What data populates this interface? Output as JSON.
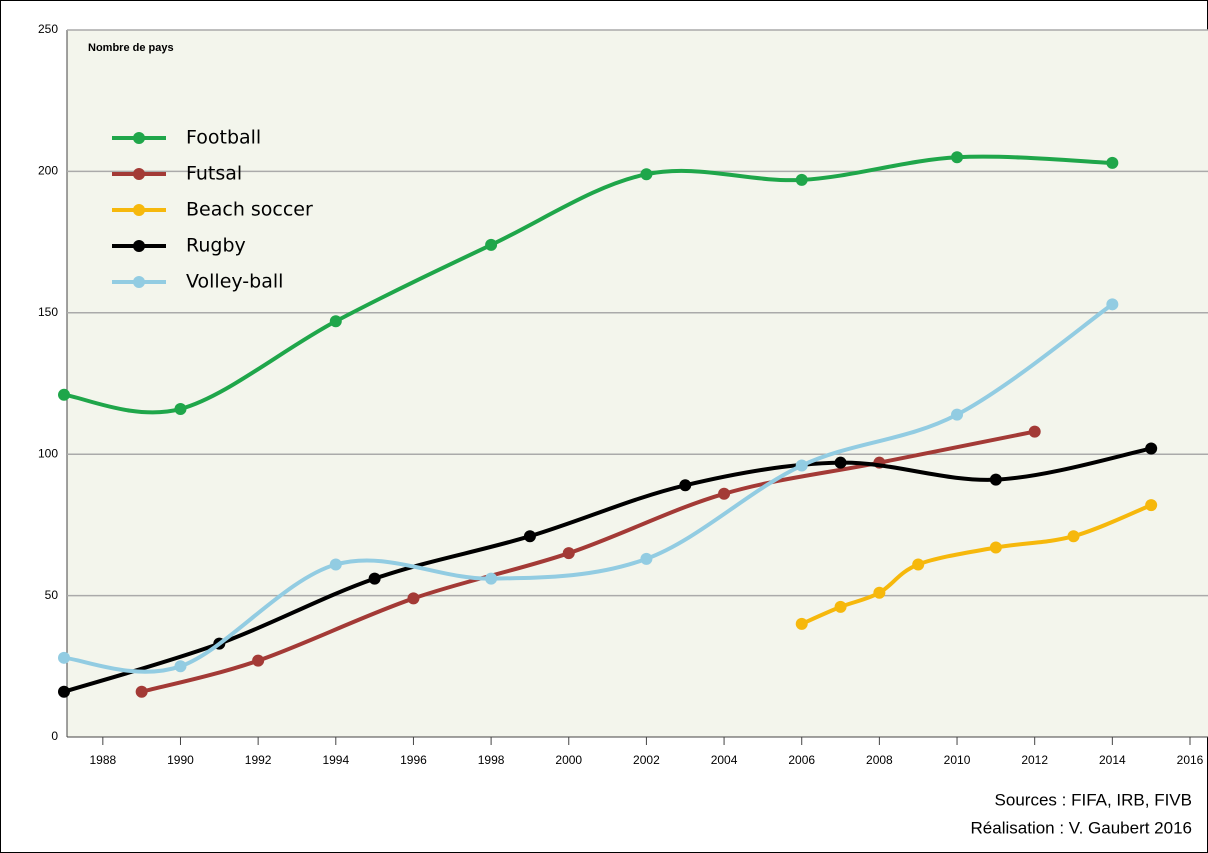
{
  "chart_data": {
    "type": "line",
    "y_label": "Nombre de pays",
    "source": [
      "Sources : FIFA, IRB, FIVB",
      "Réalisation : V. Gaubert 2016"
    ],
    "xlim": [
      1987,
      2016
    ],
    "xticks": [
      1988,
      1990,
      1992,
      1994,
      1996,
      1998,
      2000,
      2002,
      2004,
      2006,
      2008,
      2010,
      2012,
      2014,
      2016
    ],
    "ylim": [
      0,
      250
    ],
    "yticks": [
      0,
      50,
      100,
      150,
      200,
      250
    ],
    "grid": true,
    "legend": "upper left",
    "series": [
      {
        "name": "Football",
        "color": "#1fa64a",
        "x": [
          1987,
          1990,
          1994,
          1998,
          2002,
          2006,
          2010,
          2014
        ],
        "values": [
          121,
          116,
          147,
          174,
          199,
          197,
          205,
          203
        ]
      },
      {
        "name": "Futsal",
        "color": "#a33a36",
        "x": [
          1989,
          1992,
          1996,
          2000,
          2004,
          2008,
          2012
        ],
        "values": [
          16,
          27,
          49,
          65,
          86,
          97,
          108
        ]
      },
      {
        "name": "Beach soccer",
        "color": "#f6b80c",
        "x": [
          2006,
          2007,
          2008,
          2009,
          2011,
          2013,
          2015
        ],
        "values": [
          40,
          46,
          51,
          61,
          67,
          71,
          82
        ]
      },
      {
        "name": "Rugby",
        "color": "#000000",
        "x": [
          1987,
          1991,
          1995,
          1999,
          2003,
          2007,
          2011,
          2015
        ],
        "values": [
          16,
          33,
          56,
          71,
          89,
          97,
          91,
          102
        ]
      },
      {
        "name": "Volley-ball",
        "color": "#92cce2",
        "x": [
          1987,
          1990,
          1994,
          1998,
          2002,
          2006,
          2010,
          2014
        ],
        "values": [
          28,
          25,
          61,
          56,
          63,
          96,
          114,
          153
        ]
      }
    ]
  }
}
